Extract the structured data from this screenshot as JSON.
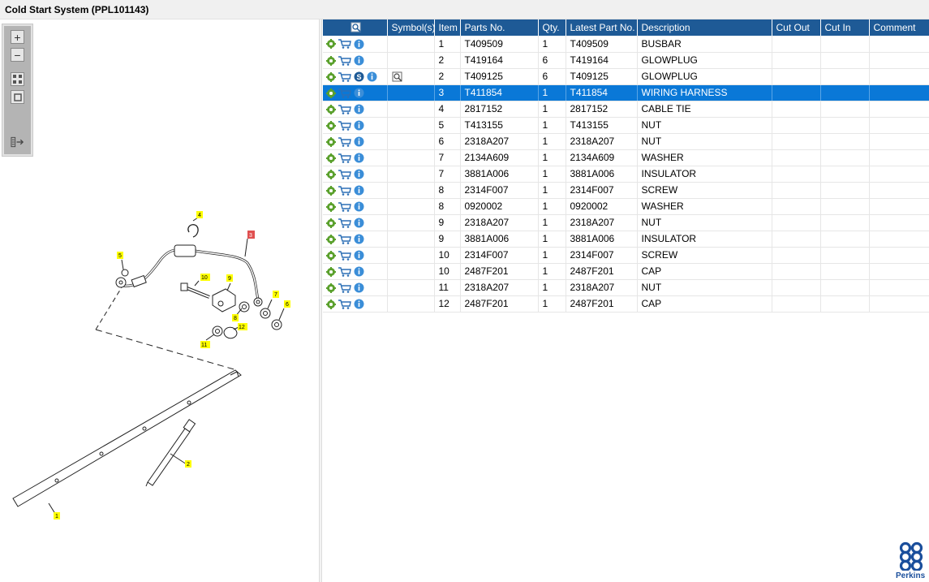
{
  "window": {
    "title": "Cold Start System (PPL101143)"
  },
  "zoom_toolbar": {
    "zoom_in_icon": "plus-icon",
    "zoom_out_icon": "minus-icon",
    "fit_icon": "grid-icon",
    "actual_size_icon": "square-icon",
    "export_icon": "list-arrow-icon"
  },
  "diagram": {
    "callouts": [
      "1",
      "2",
      "3",
      "4",
      "5",
      "6",
      "7",
      "8",
      "9",
      "10",
      "11",
      "12"
    ],
    "highlighted_callout": "3"
  },
  "grid": {
    "columns": {
      "symbols": "Symbol(s)",
      "item": "Item",
      "parts_no": "Parts No.",
      "qty": "Qty.",
      "latest_part_no": "Latest Part No.",
      "description": "Description",
      "cut_out": "Cut Out",
      "cut_in": "Cut In",
      "comment": "Comment"
    },
    "selected_row": 3,
    "rows": [
      {
        "item": "1",
        "parts_no": "T409509",
        "qty": "1",
        "latest_part_no": "T409509",
        "description": "BUSBAR",
        "has_s": false,
        "has_symbol": false
      },
      {
        "item": "2",
        "parts_no": "T419164",
        "qty": "6",
        "latest_part_no": "T419164",
        "description": "GLOWPLUG",
        "has_s": false,
        "has_symbol": false
      },
      {
        "item": "2",
        "parts_no": "T409125",
        "qty": "6",
        "latest_part_no": "T409125",
        "description": "GLOWPLUG",
        "has_s": true,
        "has_symbol": true
      },
      {
        "item": "3",
        "parts_no": "T411854",
        "qty": "1",
        "latest_part_no": "T411854",
        "description": "WIRING HARNESS",
        "has_s": false,
        "has_symbol": false
      },
      {
        "item": "4",
        "parts_no": "2817152",
        "qty": "1",
        "latest_part_no": "2817152",
        "description": "CABLE TIE",
        "has_s": false,
        "has_symbol": false
      },
      {
        "item": "5",
        "parts_no": "T413155",
        "qty": "1",
        "latest_part_no": "T413155",
        "description": "NUT",
        "has_s": false,
        "has_symbol": false
      },
      {
        "item": "6",
        "parts_no": "2318A207",
        "qty": "1",
        "latest_part_no": "2318A207",
        "description": "NUT",
        "has_s": false,
        "has_symbol": false
      },
      {
        "item": "7",
        "parts_no": "2134A609",
        "qty": "1",
        "latest_part_no": "2134A609",
        "description": "WASHER",
        "has_s": false,
        "has_symbol": false
      },
      {
        "item": "7",
        "parts_no": "3881A006",
        "qty": "1",
        "latest_part_no": "3881A006",
        "description": "INSULATOR",
        "has_s": false,
        "has_symbol": false
      },
      {
        "item": "8",
        "parts_no": "2314F007",
        "qty": "1",
        "latest_part_no": "2314F007",
        "description": "SCREW",
        "has_s": false,
        "has_symbol": false
      },
      {
        "item": "8",
        "parts_no": "0920002",
        "qty": "1",
        "latest_part_no": "0920002",
        "description": "WASHER",
        "has_s": false,
        "has_symbol": false
      },
      {
        "item": "9",
        "parts_no": "2318A207",
        "qty": "1",
        "latest_part_no": "2318A207",
        "description": "NUT",
        "has_s": false,
        "has_symbol": false
      },
      {
        "item": "9",
        "parts_no": "3881A006",
        "qty": "1",
        "latest_part_no": "3881A006",
        "description": "INSULATOR",
        "has_s": false,
        "has_symbol": false
      },
      {
        "item": "10",
        "parts_no": "2314F007",
        "qty": "1",
        "latest_part_no": "2314F007",
        "description": "SCREW",
        "has_s": false,
        "has_symbol": false
      },
      {
        "item": "10",
        "parts_no": "2487F201",
        "qty": "1",
        "latest_part_no": "2487F201",
        "description": "CAP",
        "has_s": false,
        "has_symbol": false
      },
      {
        "item": "11",
        "parts_no": "2318A207",
        "qty": "1",
        "latest_part_no": "2318A207",
        "description": "NUT",
        "has_s": false,
        "has_symbol": false
      },
      {
        "item": "12",
        "parts_no": "2487F201",
        "qty": "1",
        "latest_part_no": "2487F201",
        "description": "CAP",
        "has_s": false,
        "has_symbol": false
      }
    ],
    "row_icons": [
      "gear-icon",
      "cart-icon",
      "info-icon"
    ],
    "colors": {
      "header": "#1e5a96",
      "selected_row": "#0a78d7",
      "gear": "#5aa02c",
      "cart": "#2c6fb5",
      "info": "#3b8ed8"
    }
  },
  "logo": {
    "text": "Perkins",
    "color": "#1b4f9c"
  }
}
